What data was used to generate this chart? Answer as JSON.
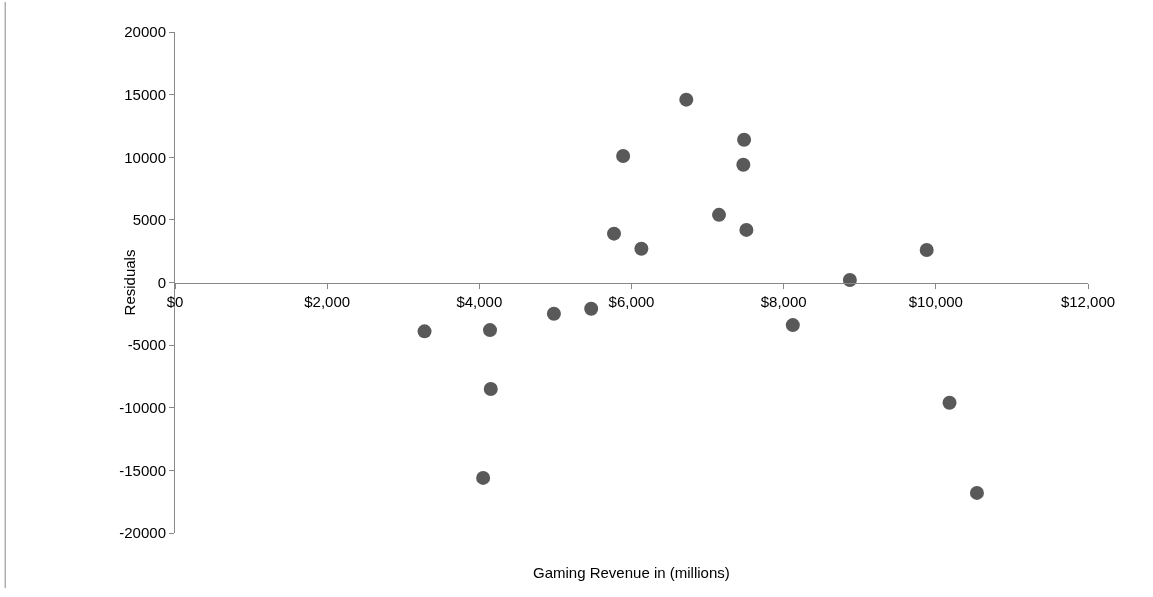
{
  "chart_data": {
    "type": "scatter",
    "xlabel": "Gaming Revenue in (millions)",
    "ylabel": "Residuals",
    "x": [
      3280,
      4140,
      4150,
      4050,
      4980,
      5470,
      5770,
      5890,
      6130,
      6720,
      7150,
      7470,
      7480,
      7510,
      8120,
      8870,
      9880,
      10180,
      10540
    ],
    "series": [
      {
        "color": "#595959",
        "values": [
          -3900,
          -3800,
          -8500,
          -15600,
          -2500,
          -2100,
          3900,
          10100,
          2700,
          14600,
          5400,
          9400,
          11400,
          4200,
          -3400,
          200,
          2600,
          -9600,
          -16800
        ]
      }
    ],
    "xlim": [
      0,
      12000
    ],
    "xticks": [
      {
        "value": 0,
        "label": "$0"
      },
      {
        "value": 2000,
        "label": "$2,000"
      },
      {
        "value": 4000,
        "label": "$4,000"
      },
      {
        "value": 6000,
        "label": "$6,000"
      },
      {
        "value": 8000,
        "label": "$8,000"
      },
      {
        "value": 10000,
        "label": "$10,000"
      },
      {
        "value": 12000,
        "label": "$12,000"
      }
    ],
    "ylim": [
      -20000,
      20000
    ],
    "yticks": [
      -20000,
      -15000,
      -10000,
      -5000,
      0,
      5000,
      10000,
      15000,
      20000
    ],
    "grid": false,
    "marker": "circle"
  }
}
